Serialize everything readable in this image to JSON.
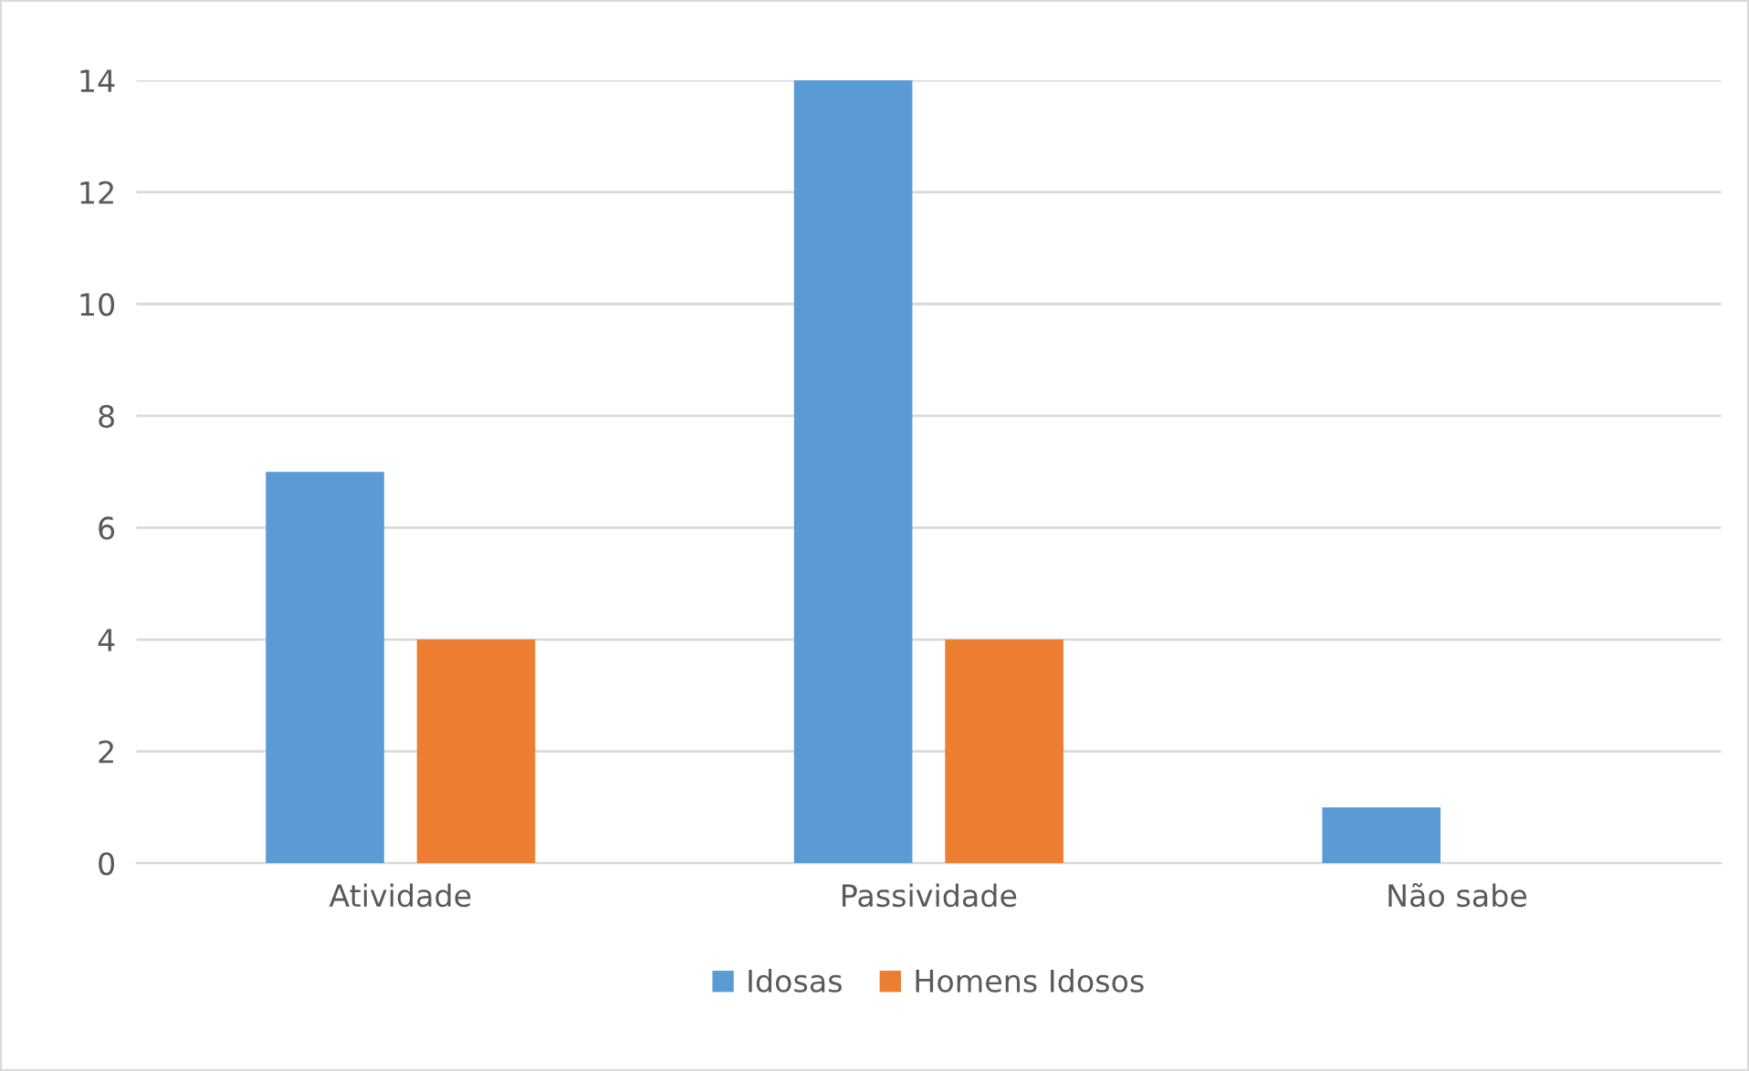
{
  "chart_data": {
    "type": "bar",
    "categories": [
      "Atividade",
      "Passividade",
      "Não sabe"
    ],
    "series": [
      {
        "name": "Idosas",
        "color": "#5b9bd5",
        "values": [
          7,
          14,
          1
        ]
      },
      {
        "name": "Homens Idosos",
        "color": "#ed7d31",
        "values": [
          4,
          4,
          0
        ]
      }
    ],
    "ylim": [
      0,
      14
    ],
    "yticks": [
      0,
      2,
      4,
      6,
      8,
      10,
      12,
      14
    ],
    "grid": "y",
    "legend": "bottom"
  }
}
